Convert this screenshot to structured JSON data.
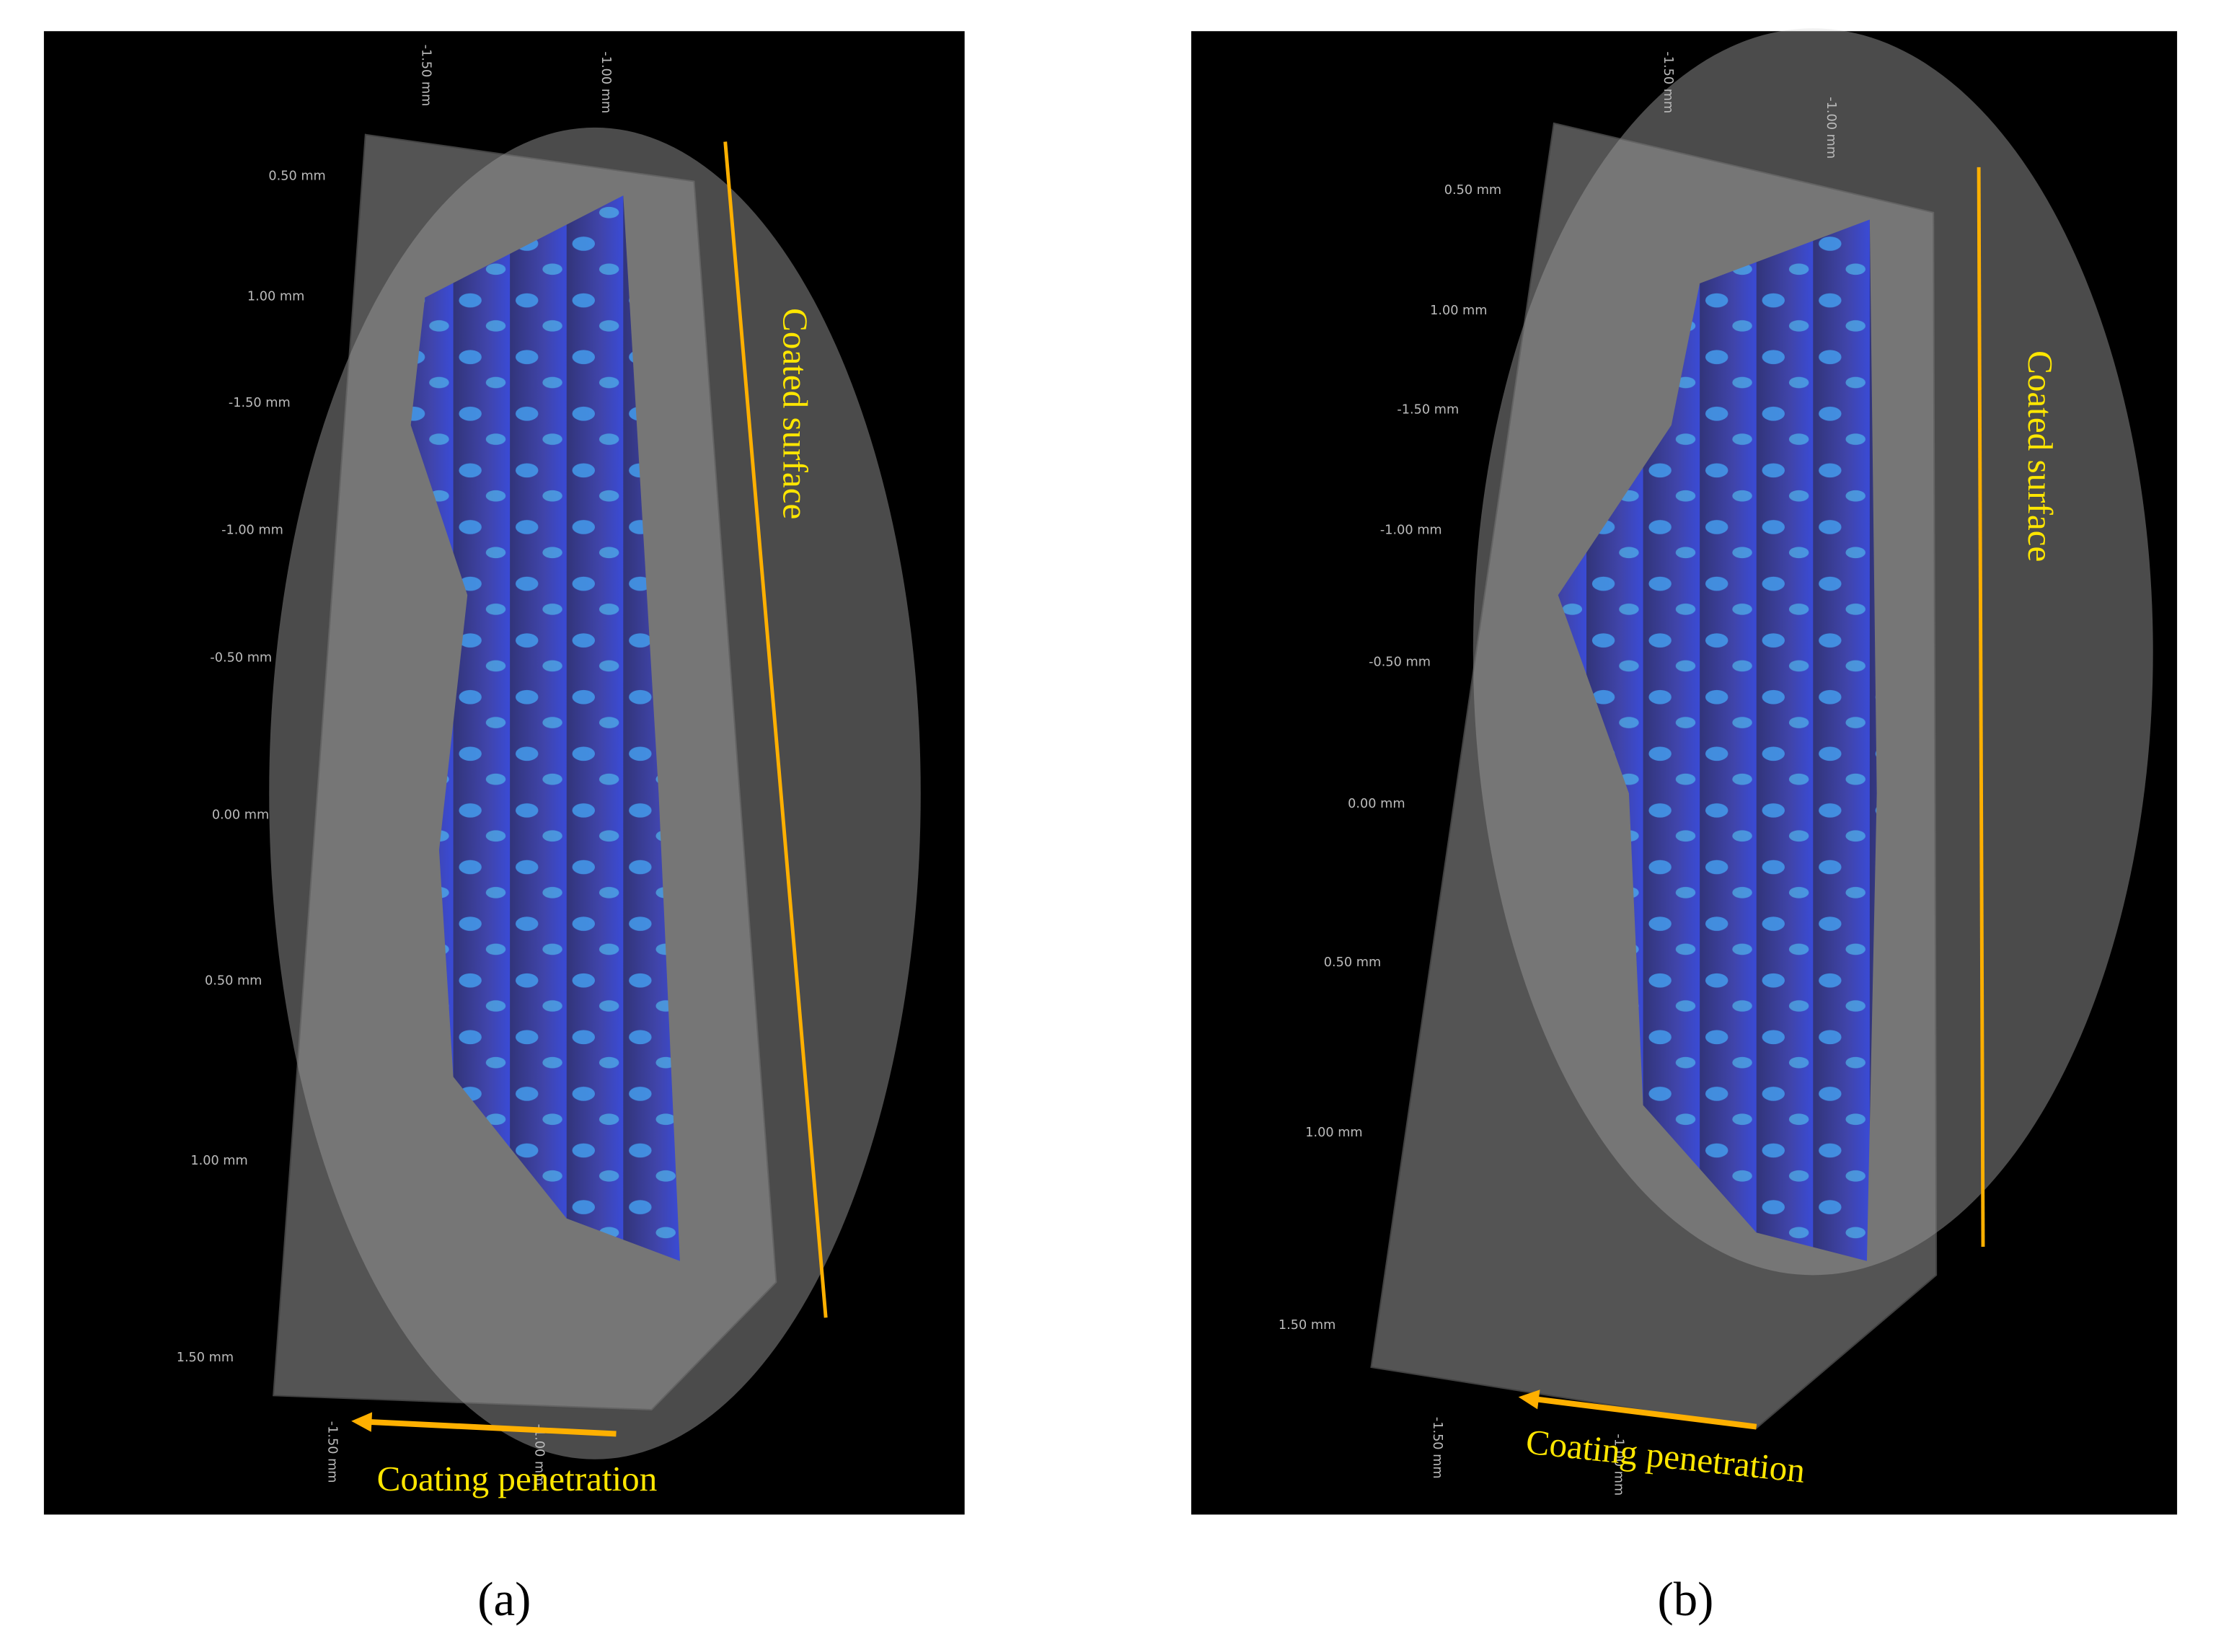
{
  "panels": [
    {
      "caption": "(a)",
      "surface_label": "Coated surface",
      "penetration_label": "Coating penetration",
      "left_axis_labels": [
        "0.50 mm",
        "1.00 mm",
        "-1.50 mm",
        "-1.00 mm",
        "-0.50 mm",
        "0.00 mm",
        "0.50 mm",
        "1.00 mm",
        "1.50 mm"
      ],
      "top_axis_labels": [
        "-1.50 mm",
        "-1.00 mm"
      ],
      "bottom_axis_labels": [
        "-1.50 mm",
        "-1.00 mm"
      ]
    },
    {
      "caption": "(b)",
      "surface_label": "Coated surface",
      "penetration_label": "Coating penetration",
      "left_axis_labels": [
        "0.50 mm",
        "1.00 mm",
        "-1.50 mm",
        "-1.00 mm",
        "-0.50 mm",
        "0.00 mm",
        "0.50 mm",
        "1.00 mm",
        "1.50 mm"
      ],
      "top_axis_labels": [
        "-1.50 mm",
        "-1.00 mm"
      ],
      "bottom_axis_labels": [
        "-1.50 mm",
        "-1.00 mm"
      ]
    }
  ]
}
